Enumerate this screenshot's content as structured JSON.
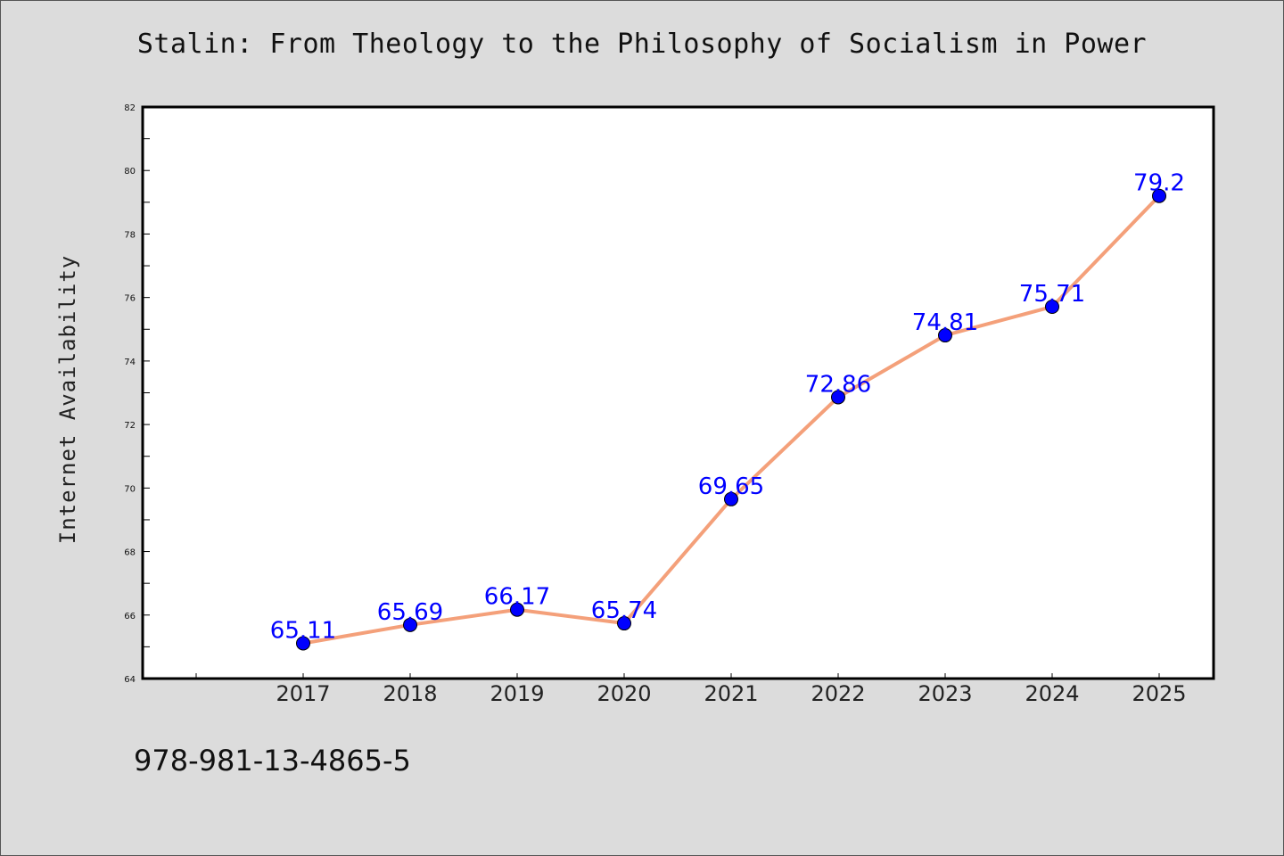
{
  "chart_data": {
    "type": "line",
    "title": "Stalin: From Theology to the Philosophy of Socialism in Power",
    "xlabel": "",
    "ylabel": "Internet Availability",
    "x": [
      "2017",
      "2018",
      "2019",
      "2020",
      "2021",
      "2022",
      "2023",
      "2024",
      "2025"
    ],
    "series": [
      {
        "values": [
          65.11,
          65.69,
          66.17,
          65.74,
          69.65,
          72.86,
          74.81,
          75.71,
          79.2
        ],
        "line_color": "#f4a07a",
        "marker_color": "#0000ff"
      }
    ],
    "data_labels": [
      "65.11",
      "65.69",
      "66.17",
      "65.74",
      "69.65",
      "72.86",
      "74.81",
      "75.71",
      "79.2"
    ],
    "y_ticks": [
      "64",
      "66",
      "68",
      "70",
      "72",
      "74",
      "76",
      "78",
      "80",
      "82"
    ],
    "ylim": [
      64,
      82
    ],
    "grid": false,
    "legend": "none"
  },
  "footer_text": "978-981-13-4865-5",
  "colors": {
    "background": "#dcdcdc",
    "plot_background": "#ffffff",
    "line": "#f4a07a",
    "marker": "#0000ff",
    "data_label": "#0000ff"
  }
}
